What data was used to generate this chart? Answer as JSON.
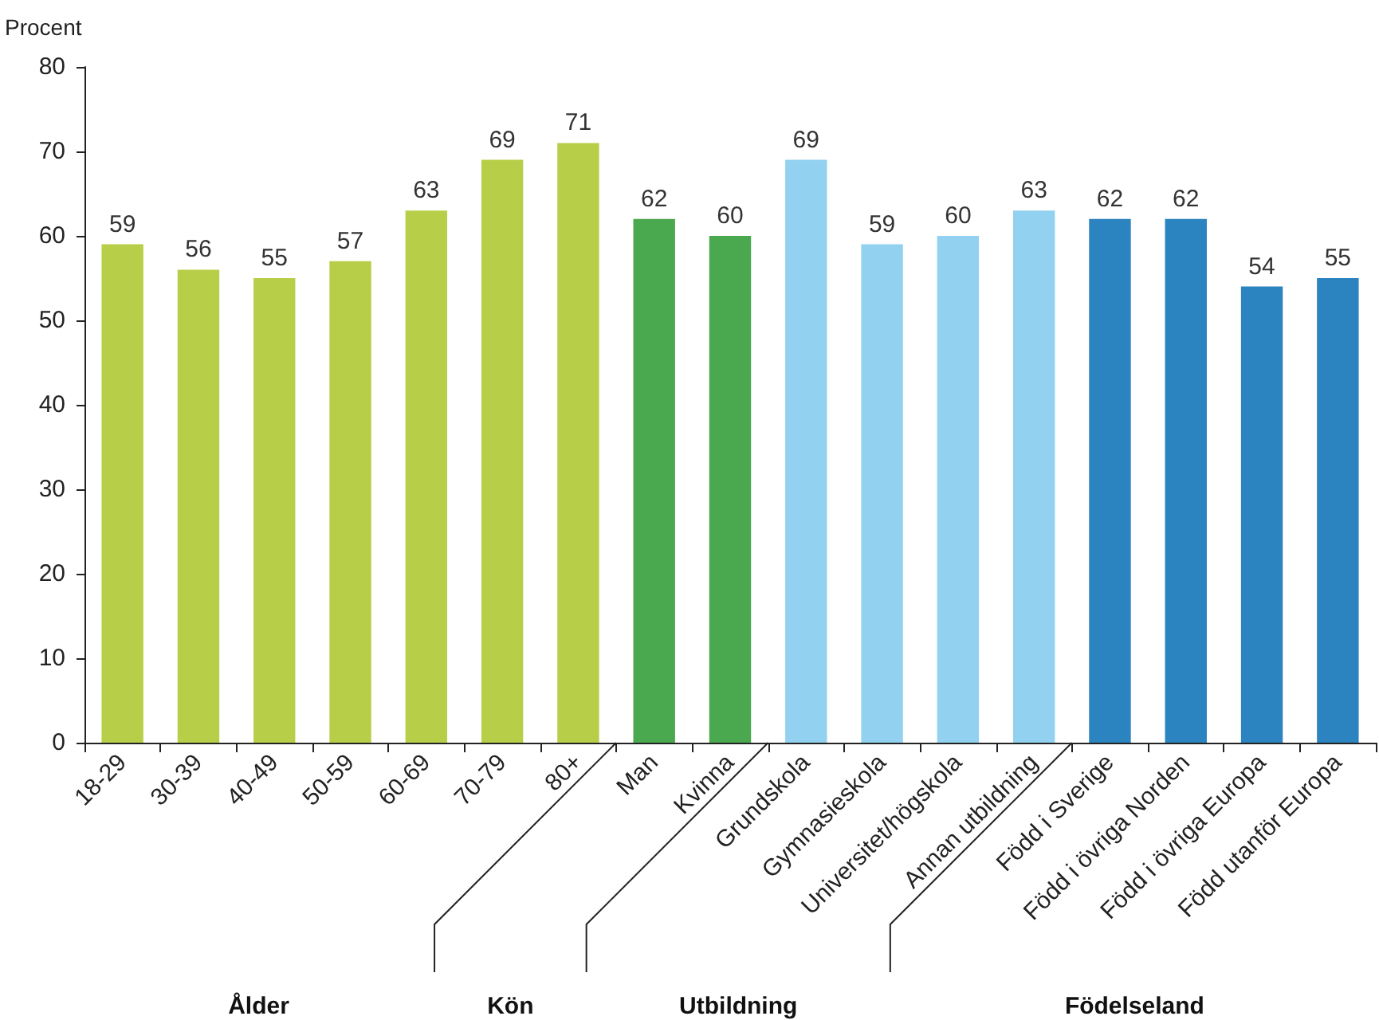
{
  "chart_data": {
    "type": "bar",
    "ylabel": "Procent",
    "categories": [
      "18-29",
      "30-39",
      "40-49",
      "50-59",
      "60-69",
      "70-79",
      "80+",
      "Man",
      "Kvinna",
      "Grundskola",
      "Gymnasieskola",
      "Universitet/högskola",
      "Annan utbildning",
      "Född i Sverige",
      "Född i övriga Norden",
      "Född i övriga Europa",
      "Född utanför Europa"
    ],
    "values": [
      59,
      56,
      55,
      57,
      63,
      69,
      71,
      62,
      60,
      69,
      59,
      60,
      63,
      62,
      62,
      54,
      55
    ],
    "colors": [
      "#b7cf48",
      "#b7cf48",
      "#b7cf48",
      "#b7cf48",
      "#b7cf48",
      "#b7cf48",
      "#b7cf48",
      "#4aa84f",
      "#4aa84f",
      "#92d1f0",
      "#92d1f0",
      "#92d1f0",
      "#92d1f0",
      "#2b83c0",
      "#2b83c0",
      "#2b83c0",
      "#2b83c0"
    ],
    "ylim": [
      0,
      80
    ],
    "yticks": [
      0,
      10,
      20,
      30,
      40,
      50,
      60,
      70,
      80
    ],
    "grid": false,
    "data_labels": true,
    "annotations": [
      "Ålder",
      "Kön",
      "Utbildning",
      "Födelseland"
    ]
  }
}
